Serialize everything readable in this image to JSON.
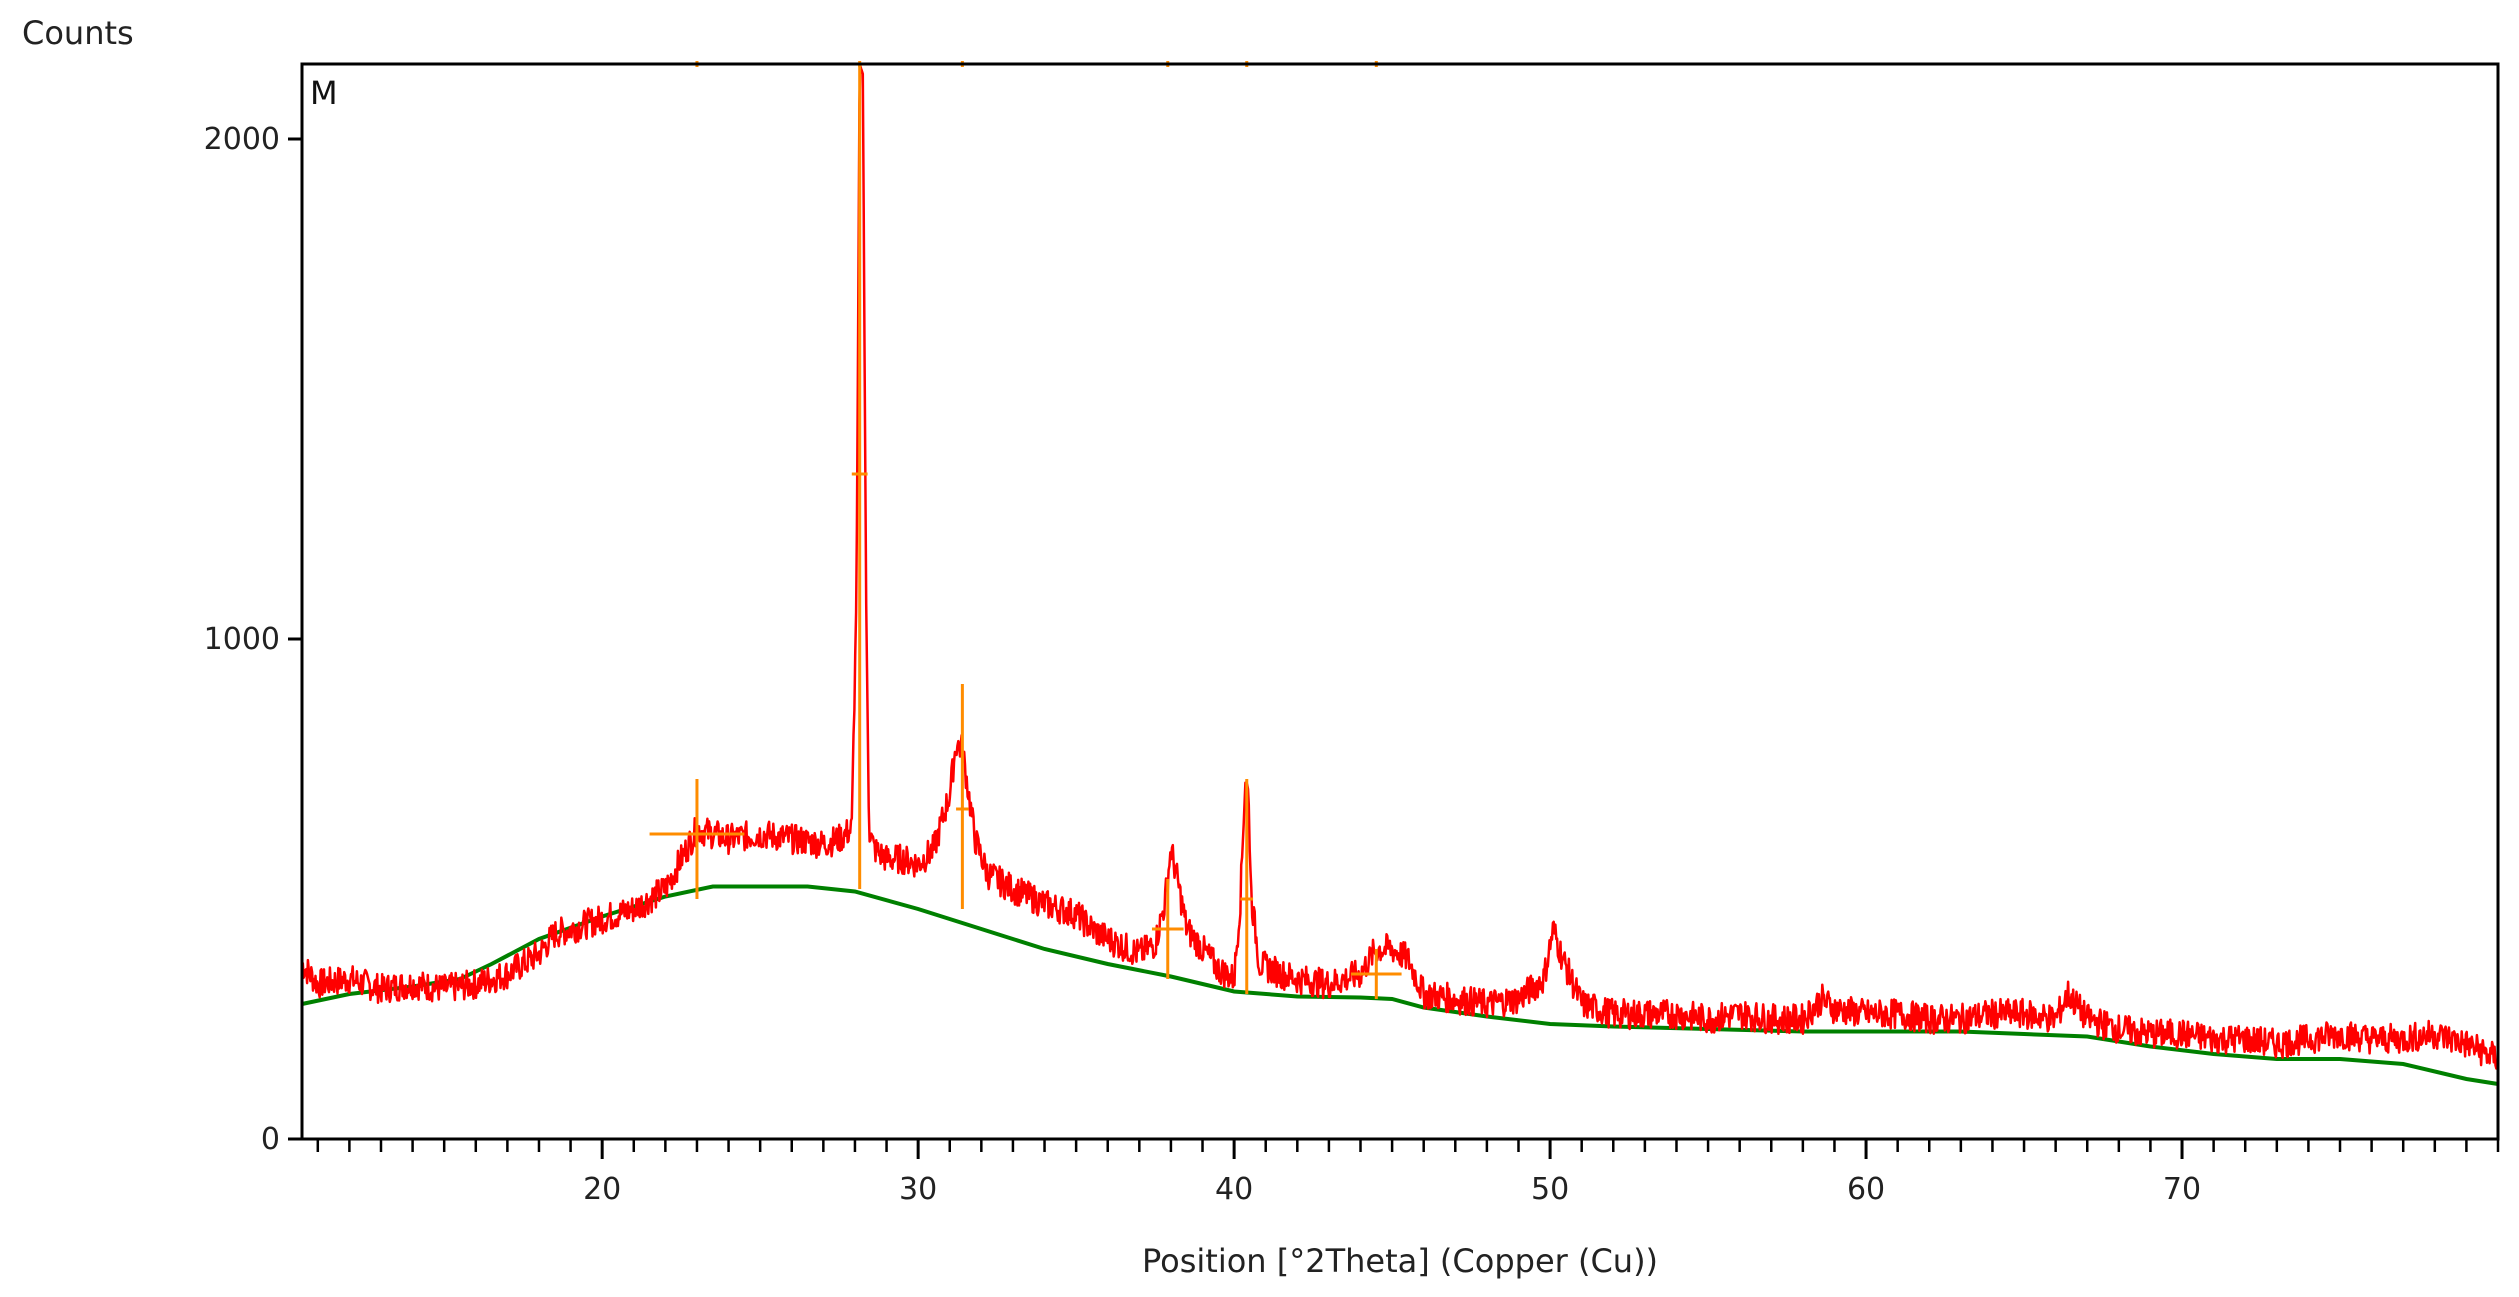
{
  "chart_data": {
    "type": "line",
    "title": "",
    "ylabel": "Counts",
    "xlabel": "Position [°2Theta] (Copper (Cu))",
    "panel_label": "M",
    "xlim": [
      10.5,
      80
    ],
    "ylim": [
      0,
      2150
    ],
    "x_ticks": [
      20,
      30,
      40,
      50,
      60,
      70
    ],
    "x_tick_labels": [
      "20",
      "30",
      "40",
      "50",
      "60",
      "70"
    ],
    "x_minor_tick_step": 1,
    "y_ticks": [
      0,
      1000,
      2000
    ],
    "y_tick_labels": [
      "0",
      "1000",
      "2000"
    ],
    "grid": false,
    "legend": "none",
    "colors": {
      "pattern": "#ff0000",
      "background_fit": "#008000",
      "peak_markers": "#ff8c00",
      "axis": "#000000"
    },
    "series": [
      {
        "role": "pattern",
        "color": "#ff0000",
        "x": [
          10.5,
          11,
          12,
          13,
          14,
          15,
          16,
          17,
          18,
          18.5,
          19,
          20,
          21,
          22,
          22.5,
          23,
          23.5,
          24,
          25,
          26,
          27,
          27.5,
          27.9,
          28.05,
          28.15,
          28.25,
          28.35,
          28.45,
          28.6,
          28.8,
          29,
          29.5,
          30,
          30.5,
          31,
          31.2,
          31.4,
          31.6,
          31.8,
          32.2,
          33,
          34,
          35,
          35.5,
          36,
          37,
          37.5,
          37.8,
          38.0,
          38.2,
          38.5,
          39,
          39.5,
          40,
          40.2,
          40.35,
          40.45,
          40.55,
          40.8,
          41.5,
          42,
          43,
          44,
          44.5,
          45,
          45.5,
          46,
          47,
          48,
          49,
          49.8,
          50.1,
          50.4,
          51,
          52,
          53,
          54,
          55,
          56,
          57,
          58,
          58.6,
          59,
          60,
          61,
          62,
          63,
          64,
          65,
          66,
          66.4,
          67,
          68,
          69,
          70,
          71,
          72,
          73,
          74,
          75,
          76,
          77,
          78,
          79,
          80
        ],
        "y": [
          350,
          310,
          320,
          300,
          310,
          300,
          310,
          330,
          370,
          410,
          420,
          440,
          460,
          500,
          560,
          620,
          610,
          600,
          610,
          600,
          590,
          600,
          620,
          1100,
          2150,
          2130,
          1100,
          620,
          580,
          570,
          560,
          560,
          550,
          580,
          690,
          790,
          780,
          690,
          600,
          530,
          500,
          470,
          450,
          420,
          400,
          370,
          390,
          470,
          580,
          520,
          420,
          380,
          340,
          320,
          480,
          720,
          690,
          480,
          350,
          330,
          320,
          310,
          330,
          380,
          380,
          360,
          290,
          280,
          270,
          280,
          320,
          420,
          360,
          270,
          250,
          250,
          250,
          240,
          250,
          240,
          240,
          280,
          260,
          250,
          250,
          240,
          240,
          250,
          250,
          240,
          290,
          240,
          220,
          210,
          210,
          200,
          200,
          190,
          200,
          210,
          200,
          200,
          210,
          190,
          160
        ]
      },
      {
        "role": "background_fit",
        "color": "#008000",
        "x": [
          10.5,
          12,
          14,
          15.5,
          16.5,
          18,
          20,
          22,
          23.5,
          25,
          26.5,
          28,
          30,
          32,
          34,
          36,
          38,
          40,
          42,
          44,
          45,
          46,
          48,
          50,
          52,
          55,
          58,
          60,
          63,
          65,
          67,
          69,
          71,
          73,
          75,
          77,
          79,
          80
        ],
        "y": [
          270,
          290,
          305,
          320,
          350,
          400,
          445,
          485,
          505,
          505,
          505,
          495,
          460,
          420,
          380,
          350,
          325,
          295,
          285,
          283,
          280,
          263,
          245,
          230,
          225,
          220,
          215,
          215,
          215,
          210,
          205,
          185,
          170,
          160,
          160,
          150,
          120,
          110
        ]
      }
    ],
    "peak_markers": [
      {
        "x": 23.0,
        "y": 610,
        "fwhm": 3.0,
        "bar_range": [
          480,
          720
        ]
      },
      {
        "x": 28.15,
        "y": 1330,
        "fwhm": 0.5,
        "bar_range": [
          500,
          2150
        ]
      },
      {
        "x": 31.4,
        "y": 660,
        "fwhm": 0.4,
        "bar_range": [
          460,
          910
        ]
      },
      {
        "x": 37.9,
        "y": 420,
        "fwhm": 1.0,
        "bar_range": [
          320,
          520
        ]
      },
      {
        "x": 40.4,
        "y": 480,
        "fwhm": 0.4,
        "bar_range": [
          290,
          720
        ]
      },
      {
        "x": 44.5,
        "y": 330,
        "fwhm": 1.6,
        "bar_range": [
          280,
          380
        ]
      }
    ]
  }
}
